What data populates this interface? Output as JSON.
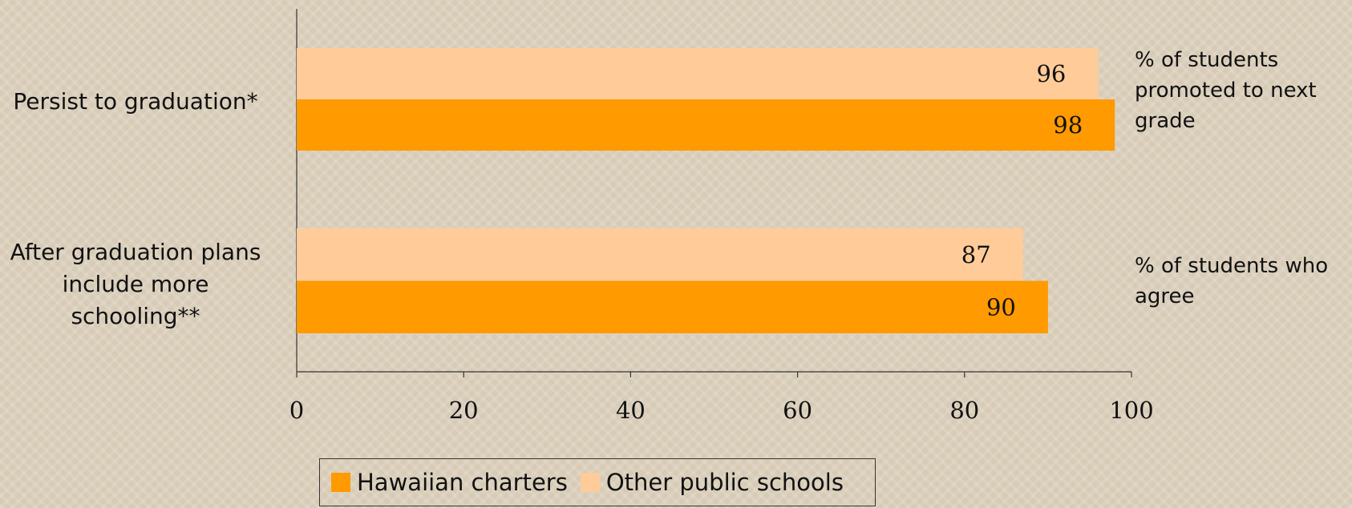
{
  "chart_data": {
    "type": "barh",
    "categories": [
      "Persist to graduation*",
      "After graduation plans include more schooling**"
    ],
    "series": [
      {
        "name": "Hawaiian charters",
        "color": "#ff9a00",
        "values": [
          98,
          90
        ]
      },
      {
        "name": "Other public schools",
        "color": "#ffcc99",
        "values": [
          96,
          87
        ]
      }
    ],
    "annotations": [
      "% of students promoted to next grade",
      "% of students who agree"
    ],
    "xlim": [
      0,
      100
    ],
    "xticks": [
      0,
      20,
      40,
      60,
      80,
      100
    ],
    "grid": false,
    "legend": "bottom"
  }
}
